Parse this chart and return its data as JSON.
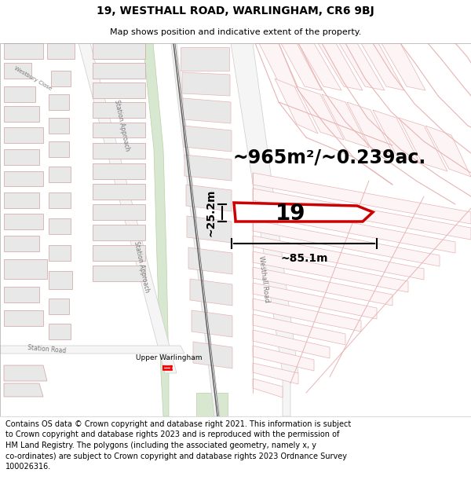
{
  "title_line1": "19, WESTHALL ROAD, WARLINGHAM, CR6 9BJ",
  "title_line2": "Map shows position and indicative extent of the property.",
  "area_text": "~965m²/~0.239ac.",
  "dim_width": "~85.1m",
  "dim_height": "~25.2m",
  "property_number": "19",
  "footer_lines": [
    "Contains OS data © Crown copyright and database right 2021. This information is subject",
    "to Crown copyright and database rights 2023 and is reproduced with the permission of",
    "HM Land Registry. The polygons (including the associated geometry, namely x, y",
    "co-ordinates) are subject to Crown copyright and database rights 2023 Ordnance Survey",
    "100026316."
  ],
  "map_bg": "#ffffff",
  "road_outline_color": "#e8b4b4",
  "road_fill": "#f5f5f5",
  "building_fill": "#e8e8e8",
  "building_edge": "#d0a0a0",
  "railway_fill": "#f0f0f0",
  "railway_line": "#555555",
  "green_fill": "#d8e8d0",
  "green_edge": "#b8d0a8",
  "property_color": "#cc0000",
  "property_fill": "#ffffff",
  "dim_color": "#000000",
  "text_color": "#000000",
  "road_label_color": "#777777",
  "title_fontsize": 10,
  "subtitle_fontsize": 8,
  "footer_fontsize": 7,
  "area_fontsize": 17,
  "number_fontsize": 20,
  "dim_fontsize": 10
}
